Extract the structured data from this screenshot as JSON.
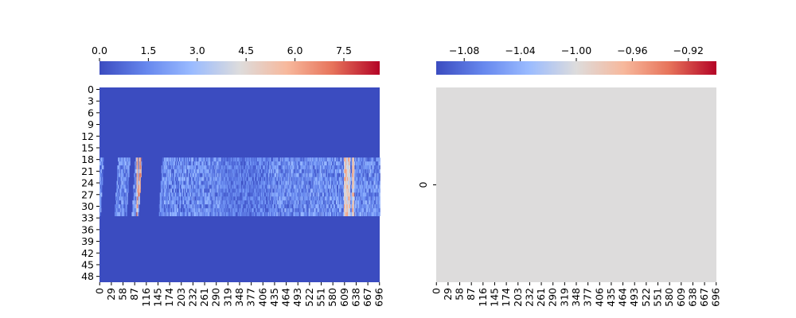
{
  "chart_data": [
    {
      "type": "heatmap",
      "title": "",
      "xlabel": "",
      "ylabel": "",
      "colormap": "coolwarm",
      "colormap_stops": [
        "#3b4cc0",
        "#7b9ff9",
        "#c0d4f5",
        "#dddcdc",
        "#f2cbb7",
        "#ee8468",
        "#b40426"
      ],
      "rows": 50,
      "cols": 697,
      "vmin": 0.0,
      "vmax": 8.6,
      "colorbar": {
        "location": "top",
        "ticks": [
          "0.0",
          "1.5",
          "3.0",
          "4.5",
          "6.0",
          "7.5"
        ],
        "tick_values": [
          0.0,
          1.5,
          3.0,
          4.5,
          6.0,
          7.5
        ]
      },
      "x_tick_labels": [
        "0",
        "29",
        "58",
        "87",
        "116",
        "145",
        "174",
        "203",
        "232",
        "261",
        "290",
        "319",
        "348",
        "377",
        "406",
        "435",
        "464",
        "493",
        "522",
        "551",
        "580",
        "609",
        "638",
        "667",
        "696"
      ],
      "x_tick_values": [
        0,
        29,
        58,
        87,
        116,
        145,
        174,
        203,
        232,
        261,
        290,
        319,
        348,
        377,
        406,
        435,
        464,
        493,
        522,
        551,
        580,
        609,
        638,
        667,
        696
      ],
      "y_tick_labels": [
        "0",
        "3",
        "6",
        "9",
        "12",
        "15",
        "18",
        "21",
        "24",
        "27",
        "30",
        "33",
        "36",
        "39",
        "42",
        "45",
        "48"
      ],
      "y_tick_values": [
        0,
        3,
        6,
        9,
        12,
        15,
        18,
        21,
        24,
        27,
        30,
        33,
        36,
        39,
        42,
        45,
        48
      ],
      "active_rows": [
        18,
        32
      ],
      "background_value": 0.0,
      "active_band_typical_range": [
        0.0,
        3.0
      ],
      "bright_streak_columns": [
        93,
        100,
        610,
        615,
        620,
        630
      ],
      "blank_column_ranges": [
        [
          10,
          45
        ],
        [
          75,
          88
        ],
        [
          105,
          155
        ]
      ]
    },
    {
      "type": "heatmap",
      "title": "",
      "xlabel": "",
      "ylabel": "",
      "colormap": "coolwarm",
      "rows": 1,
      "cols": 697,
      "vmin": -1.1,
      "vmax": -0.9,
      "uniform_value": -1.0,
      "colorbar": {
        "location": "top",
        "ticks": [
          "−1.08",
          "−1.04",
          "−1.00",
          "−0.96",
          "−0.92"
        ],
        "tick_values": [
          -1.08,
          -1.04,
          -1.0,
          -0.96,
          -0.92
        ]
      },
      "x_tick_labels": [
        "0",
        "29",
        "58",
        "87",
        "116",
        "145",
        "174",
        "203",
        "232",
        "261",
        "290",
        "319",
        "348",
        "377",
        "406",
        "435",
        "464",
        "493",
        "522",
        "551",
        "580",
        "609",
        "638",
        "667",
        "696"
      ],
      "x_tick_values": [
        0,
        29,
        58,
        87,
        116,
        145,
        174,
        203,
        232,
        261,
        290,
        319,
        348,
        377,
        406,
        435,
        464,
        493,
        522,
        551,
        580,
        609,
        638,
        667,
        696
      ],
      "y_tick_labels": [
        "0"
      ],
      "y_tick_values": [
        0
      ]
    }
  ]
}
